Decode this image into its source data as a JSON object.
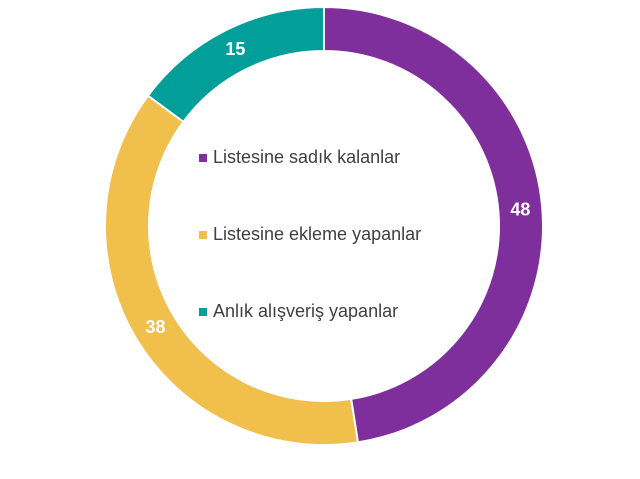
{
  "chart_data": {
    "type": "donut",
    "categories": [
      "Listesine sadık kalanlar",
      "Listesine ekleme yapanlar",
      "Anlık alışveriş yapanlar"
    ],
    "values": [
      48,
      38,
      15
    ],
    "colors": [
      "#7f2f9c",
      "#f0bf4c",
      "#029e9a"
    ]
  }
}
